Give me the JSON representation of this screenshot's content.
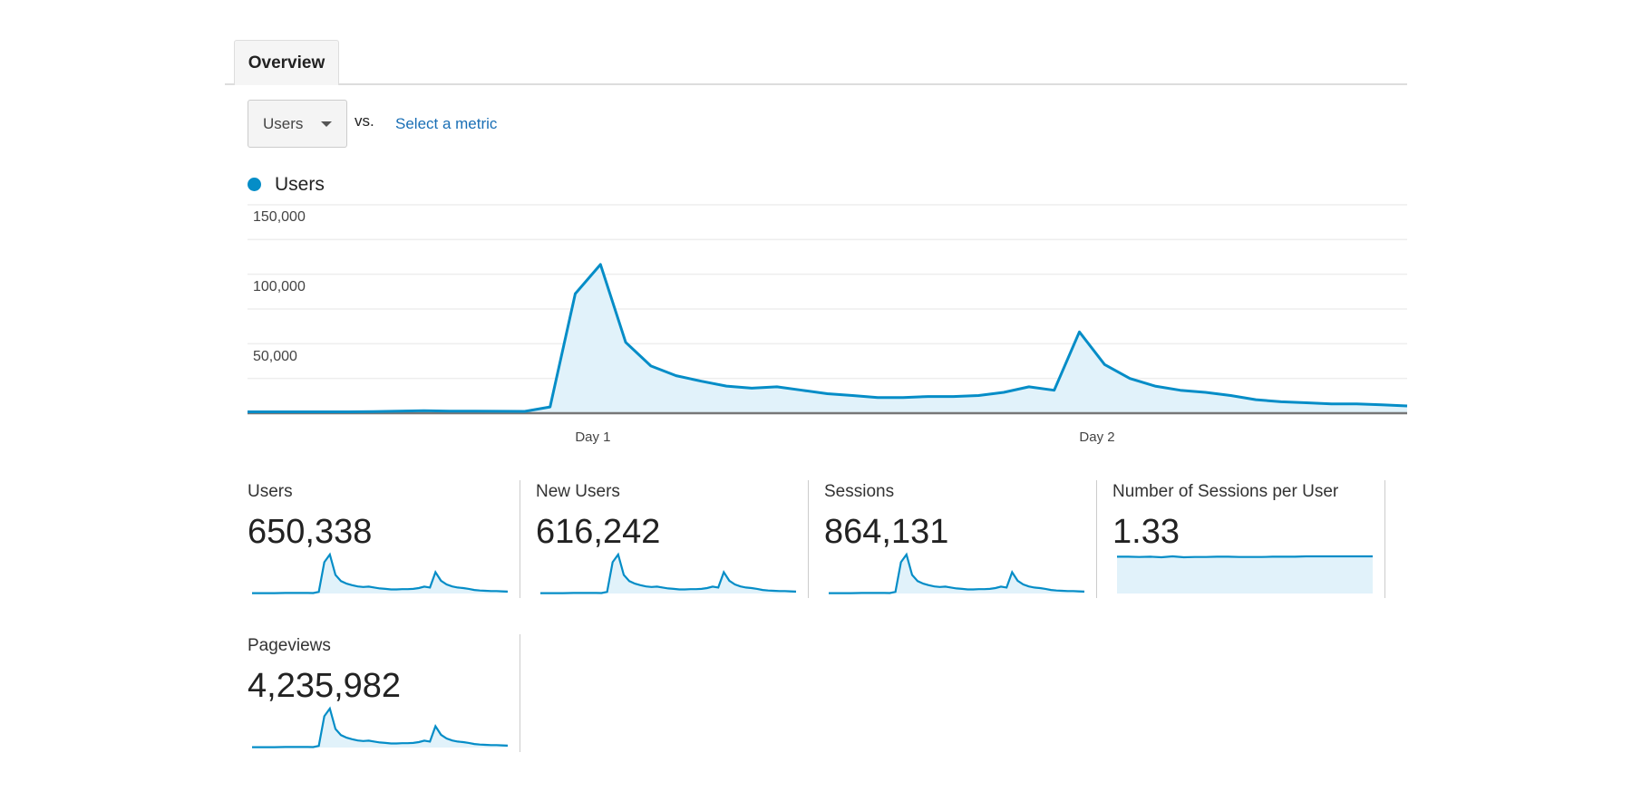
{
  "tabs": [
    {
      "label": "Overview",
      "active": true
    }
  ],
  "metric_selector": {
    "selected": "Users",
    "vs_label": "vs.",
    "compare_link": "Select a metric"
  },
  "colors": {
    "series": "#058dc7",
    "fill": "#e1f2fa",
    "link": "#1a6fb5"
  },
  "chart_data": {
    "type": "area",
    "legend": [
      {
        "name": "Users",
        "color": "#058dc7"
      }
    ],
    "legend_placement": "top-left",
    "ylim": [
      0,
      150000
    ],
    "yticks": [
      {
        "value": 150000,
        "label": "150,000"
      },
      {
        "value": 100000,
        "label": "100,000"
      },
      {
        "value": 50000,
        "label": "50,000"
      }
    ],
    "gridlines": [
      25000,
      50000,
      75000,
      100000,
      125000,
      150000
    ],
    "xticks": [
      {
        "label": "Day 1",
        "index": 13.7
      },
      {
        "label": "Day 2",
        "index": 33.7
      }
    ],
    "series": [
      {
        "name": "Users",
        "values": [
          1000,
          1000,
          1000,
          1000,
          1000,
          1200,
          1500,
          1800,
          1500,
          1500,
          1400,
          1300,
          4500,
          86000,
          107000,
          51000,
          34000,
          27000,
          23000,
          19500,
          18000,
          19000,
          16500,
          14000,
          12700,
          11200,
          11200,
          12000,
          12000,
          12700,
          15000,
          19000,
          16500,
          58500,
          35000,
          25000,
          19500,
          16500,
          15000,
          12700,
          9700,
          8200,
          7500,
          6700,
          6700,
          6000,
          5200
        ]
      }
    ]
  },
  "scorecards": [
    {
      "label": "Users",
      "value": "650,338",
      "sparkline": "users"
    },
    {
      "label": "New Users",
      "value": "616,242",
      "sparkline": "users"
    },
    {
      "label": "Sessions",
      "value": "864,131",
      "sparkline": "users"
    },
    {
      "label": "Number of Sessions per User",
      "value": "1.33",
      "sparkline_values": [
        1.33,
        1.33,
        1.32,
        1.33,
        1.31,
        1.34,
        1.31,
        1.32,
        1.32,
        1.33,
        1.33,
        1.32,
        1.32,
        1.32,
        1.33,
        1.33,
        1.33,
        1.34,
        1.34,
        1.34,
        1.34,
        1.34,
        1.34,
        1.34
      ],
      "sparkline_min": 0
    },
    {
      "label": "Pageviews",
      "value": "4,235,982",
      "sparkline": "users"
    }
  ]
}
